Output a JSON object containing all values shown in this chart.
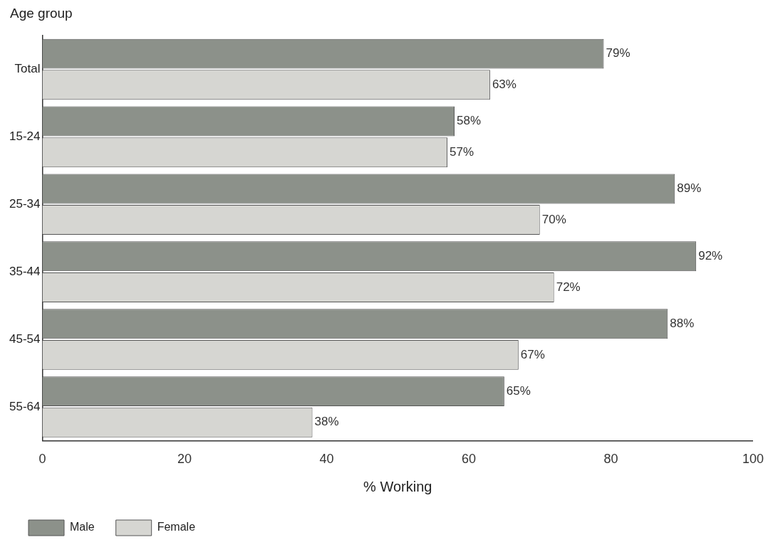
{
  "chart_data": {
    "type": "bar",
    "orientation": "horizontal",
    "ylabel": "Age group",
    "xlabel": "% Working",
    "categories": [
      "Total",
      "15-24",
      "25-34",
      "35-44",
      "45-54",
      "55-64"
    ],
    "series": [
      {
        "name": "Male",
        "color": "#8c918a",
        "values": [
          79,
          58,
          89,
          92,
          88,
          65
        ],
        "value_labels": [
          "79%",
          "58%",
          "89%",
          "92%",
          "88%",
          "65%"
        ]
      },
      {
        "name": "Female",
        "color": "#d6d6d2",
        "values": [
          63,
          57,
          70,
          72,
          67,
          38
        ],
        "value_labels": [
          "63%",
          "57%",
          "70%",
          "72%",
          "67%",
          "38%"
        ]
      }
    ],
    "xlim": [
      0,
      100
    ],
    "xticks": [
      0,
      20,
      40,
      60,
      80,
      100
    ],
    "grid": false,
    "legend": "bottom left"
  }
}
